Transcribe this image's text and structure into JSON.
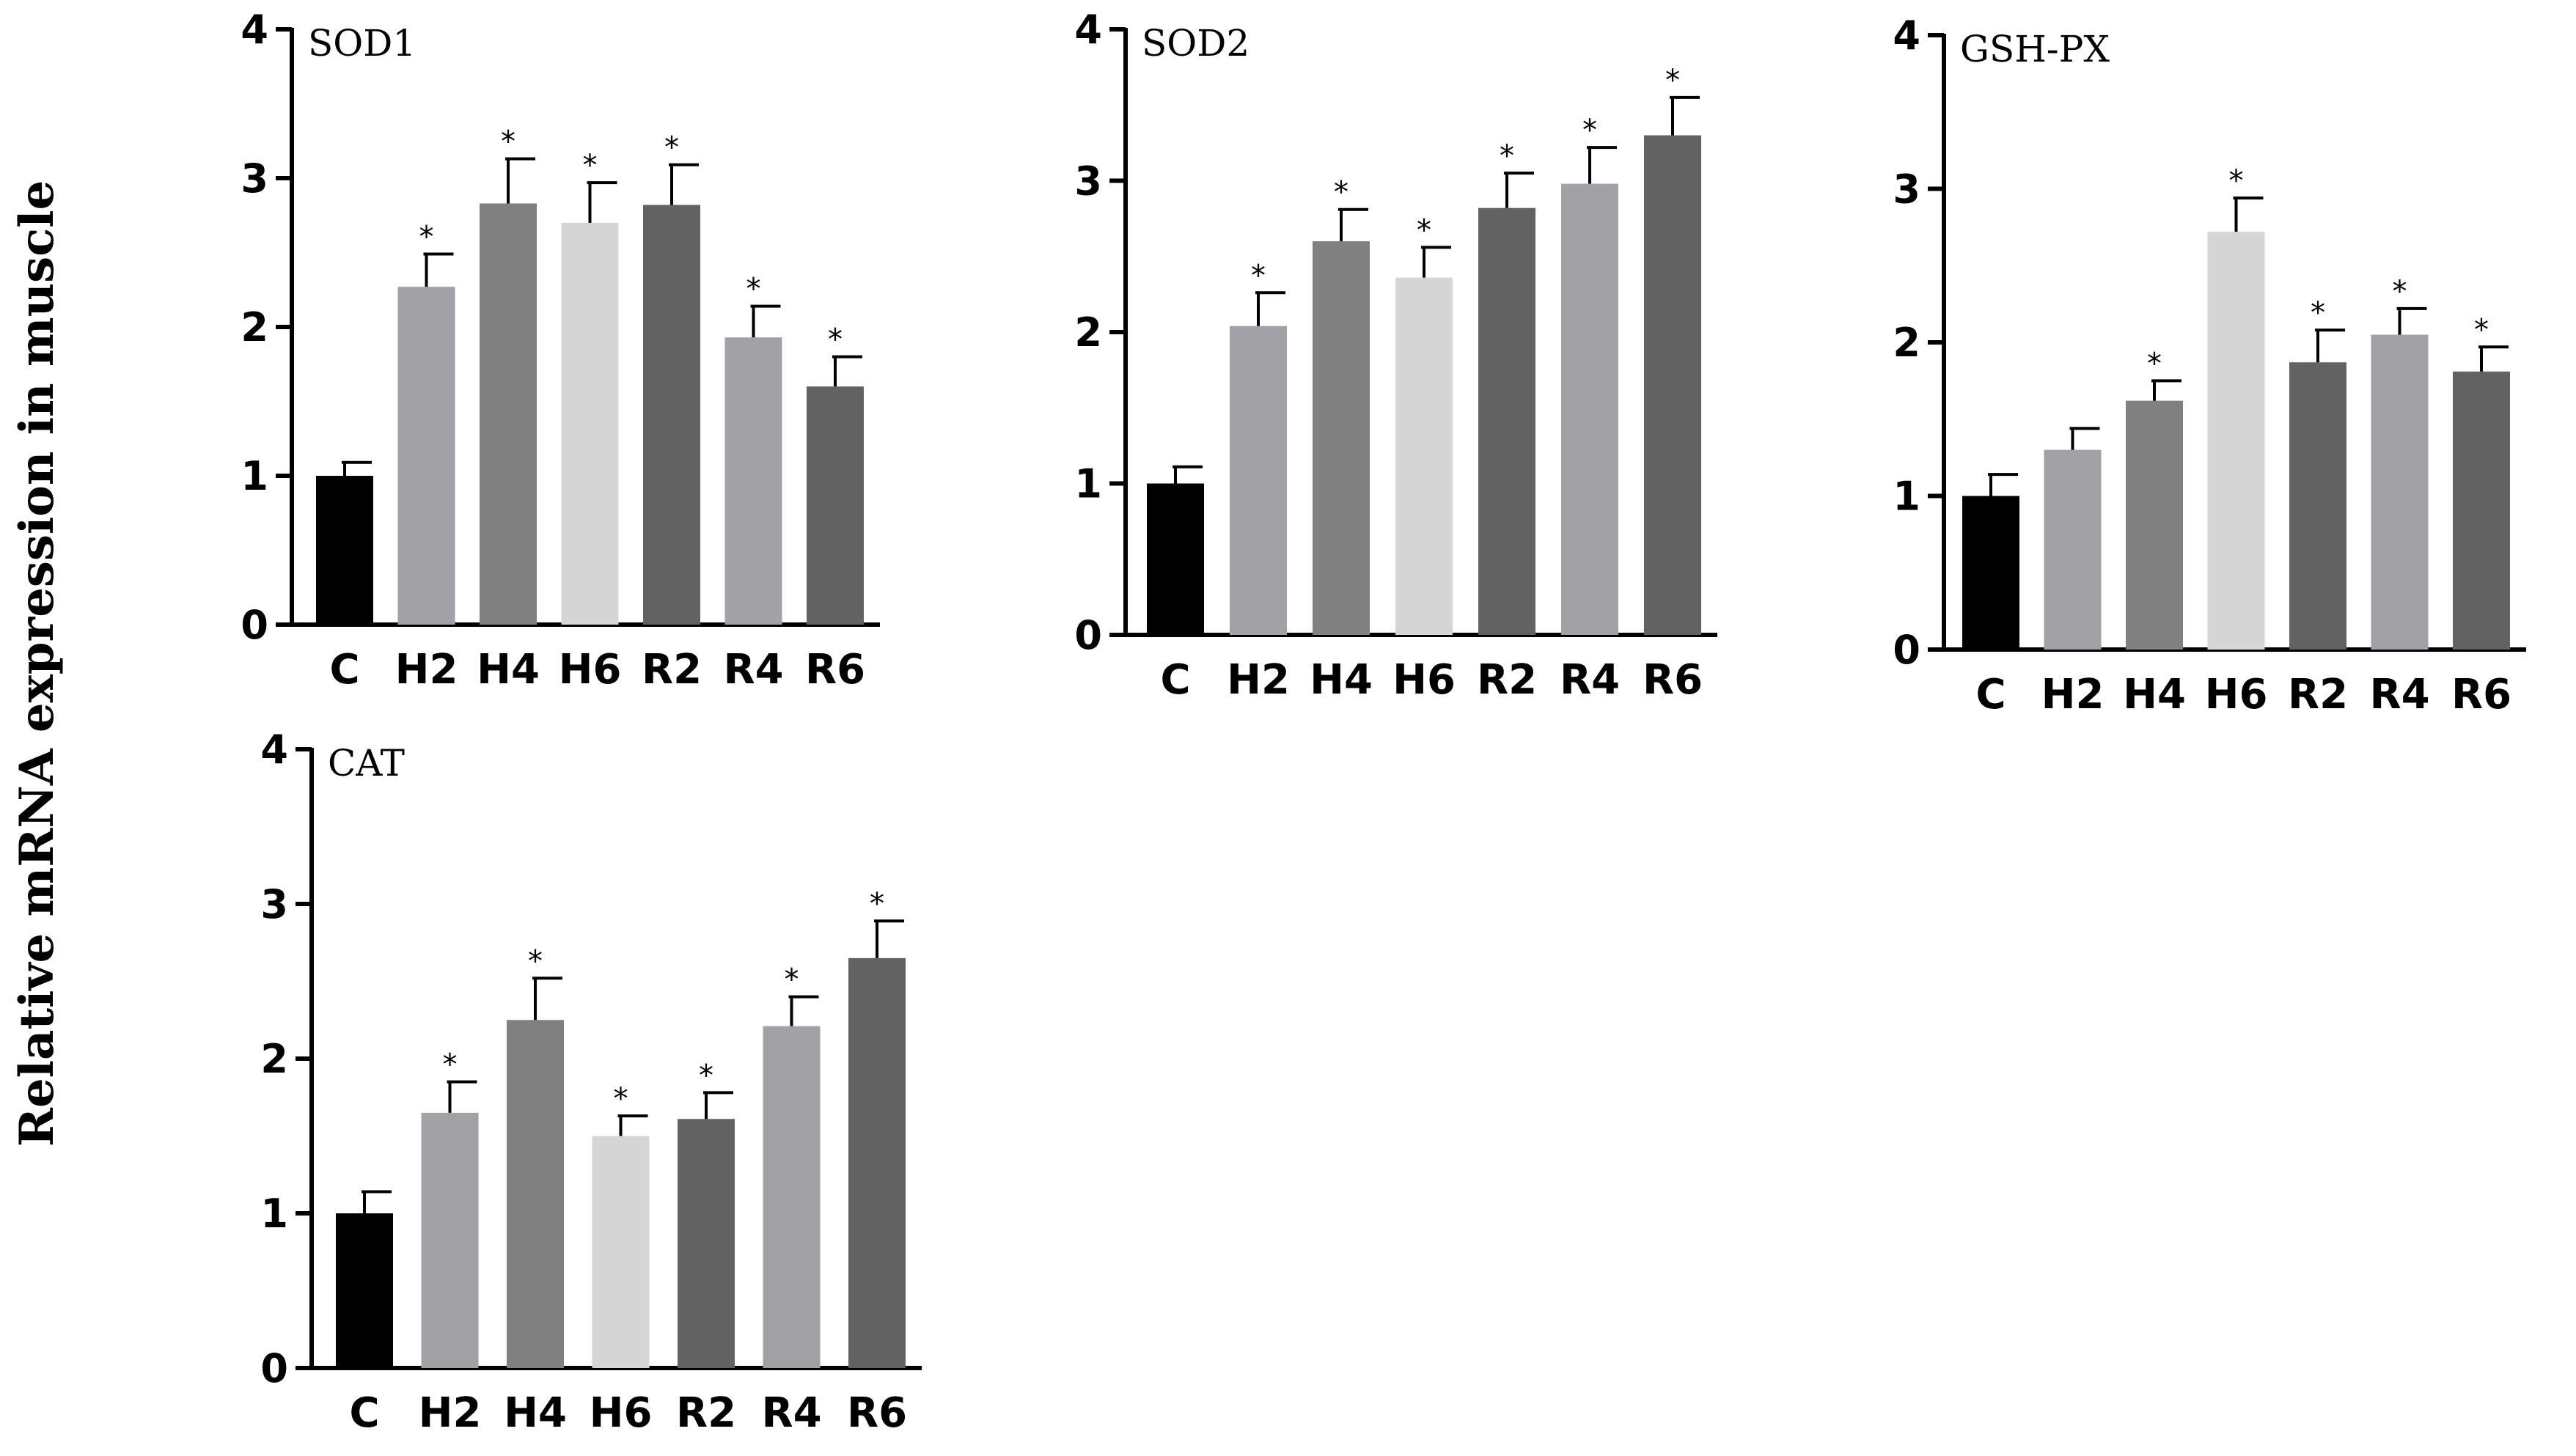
{
  "figure": {
    "y_axis_label": "Relative mRNA expression in muscle"
  },
  "colors": {
    "C": "#000000",
    "H2": "#a2a2a6",
    "H4": "#808080",
    "H6": "#d6d6d6",
    "R2": "#626262",
    "R4": "#a2a2a6",
    "R6": "#626262"
  },
  "chart_data": [
    {
      "type": "bar",
      "title": "SOD1",
      "categories": [
        "C",
        "H2",
        "H4",
        "H6",
        "R2",
        "R4",
        "R6"
      ],
      "values": [
        1.0,
        2.27,
        2.83,
        2.7,
        2.82,
        1.93,
        1.6
      ],
      "errors": [
        0.09,
        0.22,
        0.3,
        0.27,
        0.27,
        0.21,
        0.2
      ],
      "significance": [
        "",
        "*",
        "*",
        "*",
        "*",
        "*",
        "*"
      ],
      "ylim": [
        0,
        4
      ],
      "yticks": [
        "0",
        "1",
        "2",
        "3",
        "4"
      ],
      "xlabel": "",
      "ylabel": "Relative mRNA expression in muscle"
    },
    {
      "type": "bar",
      "title": "SOD2",
      "categories": [
        "C",
        "H2",
        "H4",
        "H6",
        "R2",
        "R4",
        "R6"
      ],
      "values": [
        1.0,
        2.04,
        2.6,
        2.36,
        2.82,
        2.98,
        3.3
      ],
      "errors": [
        0.11,
        0.22,
        0.21,
        0.2,
        0.23,
        0.24,
        0.25
      ],
      "significance": [
        "",
        "*",
        "*",
        "*",
        "*",
        "*",
        "*"
      ],
      "ylim": [
        0,
        4
      ],
      "yticks": [
        "0",
        "1",
        "2",
        "3",
        "4"
      ],
      "xlabel": "",
      "ylabel": "Relative mRNA expression in muscle"
    },
    {
      "type": "bar",
      "title": "GSH-PX",
      "categories": [
        "C",
        "H2",
        "H4",
        "H6",
        "R2",
        "R4",
        "R6"
      ],
      "values": [
        1.0,
        1.3,
        1.62,
        2.72,
        1.87,
        2.05,
        1.81
      ],
      "errors": [
        0.14,
        0.14,
        0.13,
        0.22,
        0.21,
        0.17,
        0.16
      ],
      "significance": [
        "",
        "",
        "*",
        "*",
        "*",
        "*",
        "*"
      ],
      "ylim": [
        0,
        4
      ],
      "yticks": [
        "0",
        "1",
        "2",
        "3",
        "4"
      ],
      "xlabel": "",
      "ylabel": "Relative mRNA expression in muscle"
    },
    {
      "type": "bar",
      "title": "CAT",
      "categories": [
        "C",
        "H2",
        "H4",
        "H6",
        "R2",
        "R4",
        "R6"
      ],
      "values": [
        1.0,
        1.65,
        2.25,
        1.5,
        1.61,
        2.21,
        2.65
      ],
      "errors": [
        0.14,
        0.2,
        0.27,
        0.13,
        0.17,
        0.19,
        0.24
      ],
      "significance": [
        "",
        "*",
        "*",
        "*",
        "*",
        "*",
        "*"
      ],
      "ylim": [
        0,
        4
      ],
      "yticks": [
        "0",
        "1",
        "2",
        "3",
        "4"
      ],
      "xlabel": "",
      "ylabel": "Relative mRNA expression in muscle"
    }
  ]
}
